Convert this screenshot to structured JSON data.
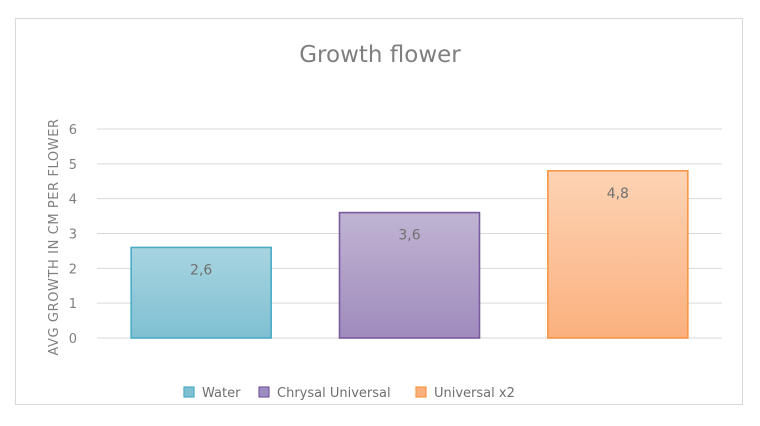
{
  "chart_data": {
    "type": "bar",
    "title": "Growth flower",
    "xlabel": "",
    "ylabel": "AVG GROWTH IN CM PER FLOWER",
    "ylim": [
      0,
      6
    ],
    "yticks": [
      0,
      1,
      2,
      3,
      4,
      5,
      6
    ],
    "grid": true,
    "legend_position": "bottom",
    "categories": [
      "Water",
      "Chrysal Universal",
      "Universal x2"
    ],
    "values": [
      2.6,
      3.6,
      4.8
    ],
    "data_labels": [
      "2,6",
      "3,6",
      "4,8"
    ],
    "colors": [
      {
        "top": "#a8d4e0",
        "bottom": "#7fc0d2",
        "stroke": "#4bacc6"
      },
      {
        "top": "#c0b4d2",
        "bottom": "#9f8bbd",
        "stroke": "#7a5a9e"
      },
      {
        "top": "#fdd3b4",
        "bottom": "#fbb07e",
        "stroke": "#f79646"
      }
    ],
    "legend": [
      "Water",
      "Chrysal Universal",
      "Universal x2"
    ]
  }
}
